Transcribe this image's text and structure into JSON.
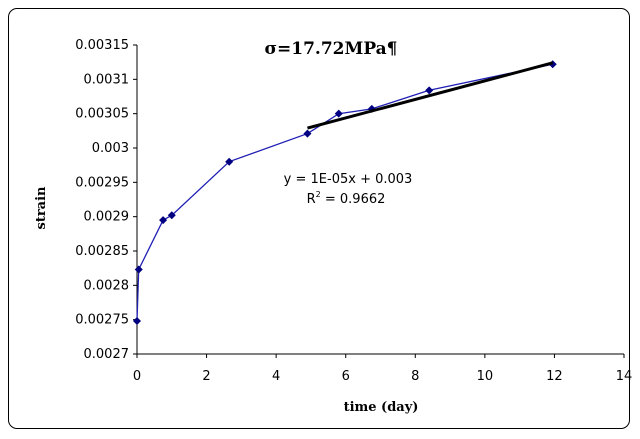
{
  "chart_data": {
    "type": "scatter",
    "title": "σ=17.72MPa¶",
    "xlabel": "time (day)",
    "ylabel": "strain",
    "xlim": [
      0,
      14
    ],
    "ylim": [
      0.0027,
      0.00315
    ],
    "x_ticks": [
      "0",
      "2",
      "4",
      "6",
      "8",
      "10",
      "12",
      "14"
    ],
    "y_ticks": [
      "0.0027",
      "0.00275",
      "0.0028",
      "0.00285",
      "0.0029",
      "0.00295",
      "0.003",
      "0.00305",
      "0.0031",
      "0.00315"
    ],
    "grid": false,
    "legend": "none",
    "series": [
      {
        "marker_color": "#000080",
        "line_color": "#1f1fb4",
        "x": [
          0,
          0.05,
          0.75,
          1.0,
          2.65,
          4.9,
          5.8,
          6.75,
          8.4,
          11.95
        ],
        "y": [
          0.002748,
          0.002823,
          0.002895,
          0.002902,
          0.00298,
          0.003021,
          0.00305,
          0.003057,
          0.003084,
          0.003122
        ]
      }
    ],
    "trendline": {
      "type": "linear",
      "x_range": [
        4.9,
        11.95
      ],
      "y_range": [
        0.003029,
        0.003124
      ],
      "color": "#000000"
    },
    "annotations": {
      "equation": "y = 1E-05x + 0.003",
      "r_squared_prefix": "R",
      "r_squared_sup": "2",
      "r_squared_value": " = 0.9662"
    }
  }
}
